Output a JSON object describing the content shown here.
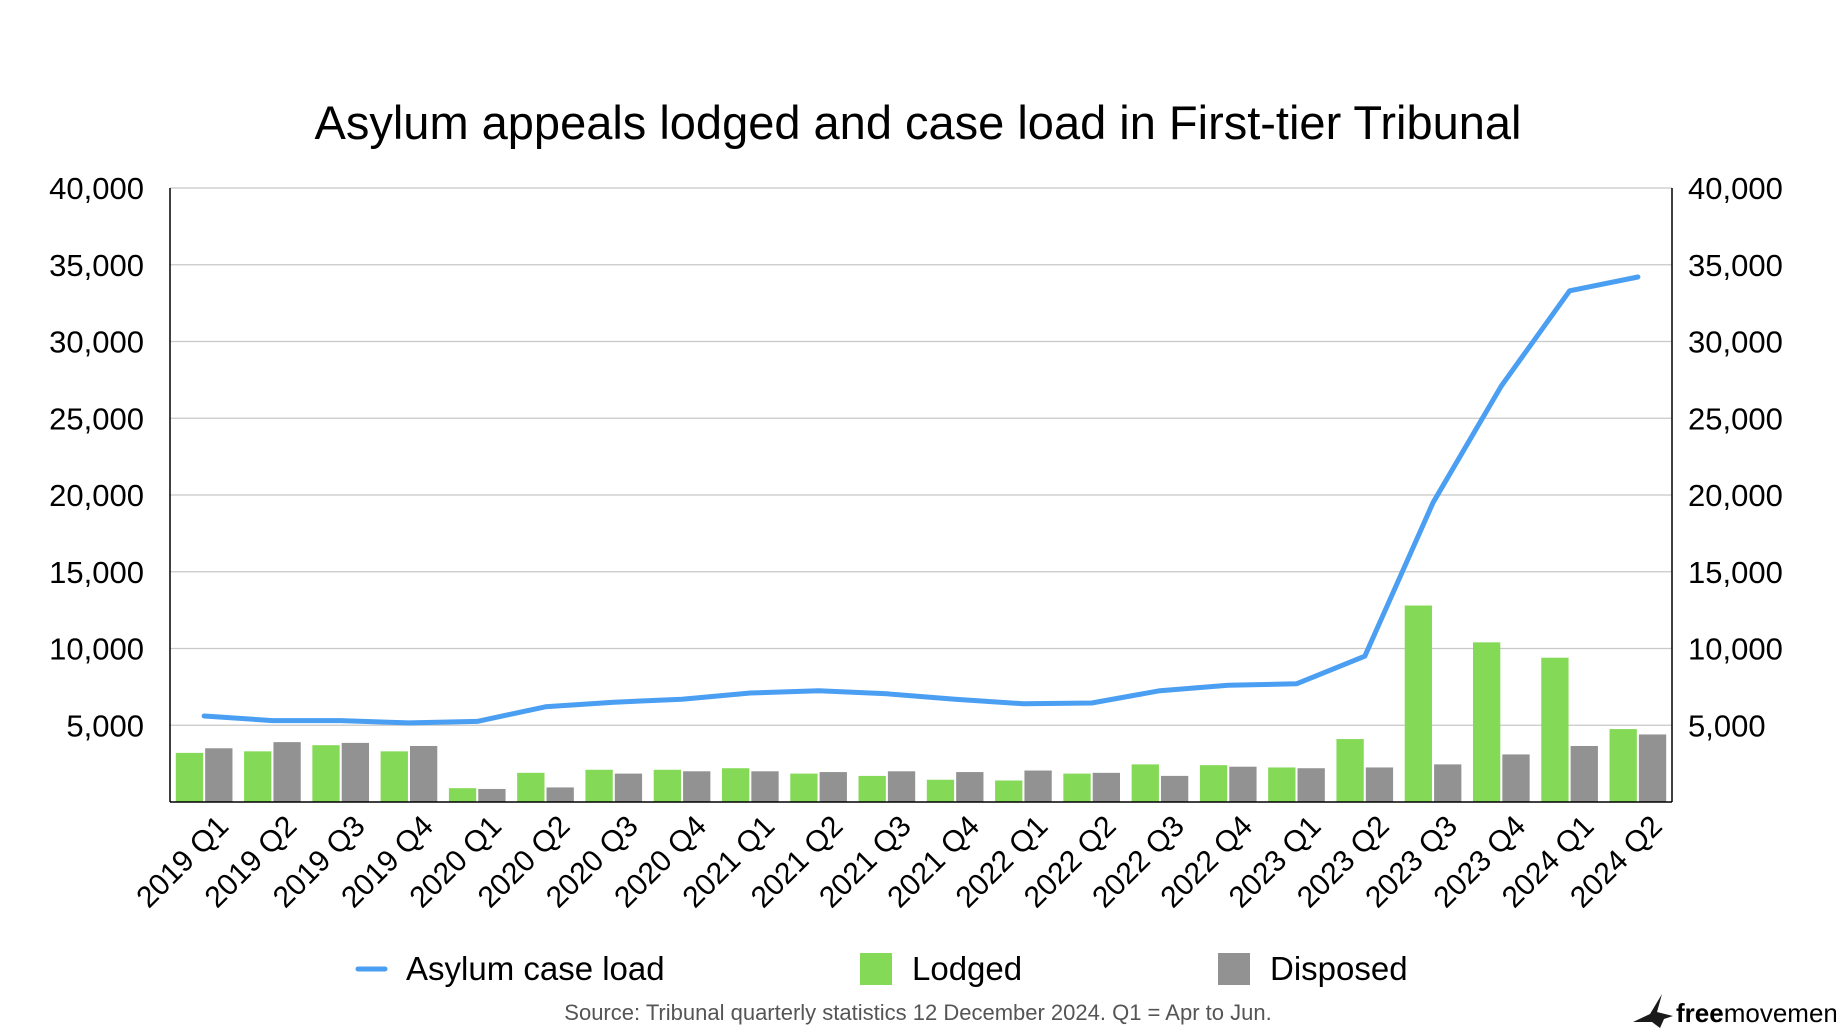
{
  "chart_data": {
    "type": "bar",
    "title": "Asylum appeals lodged and case load in First-tier Tribunal",
    "categories": [
      "2019 Q1",
      "2019 Q2",
      "2019 Q3",
      "2019 Q4",
      "2020 Q1",
      "2020 Q2",
      "2020 Q3",
      "2020 Q4",
      "2021 Q1",
      "2021 Q2",
      "2021 Q3",
      "2021 Q4",
      "2022 Q1",
      "2022 Q2",
      "2022 Q3",
      "2022 Q4",
      "2023 Q1",
      "2023 Q2",
      "2023 Q3",
      "2023 Q4",
      "2024 Q1",
      "2024 Q2"
    ],
    "series": [
      {
        "name": "Asylum case load",
        "kind": "line",
        "color": "#4a9ff2",
        "values": [
          5600,
          5300,
          5300,
          5150,
          5250,
          6200,
          6500,
          6700,
          7100,
          7250,
          7050,
          6700,
          6400,
          6450,
          7250,
          7600,
          7700,
          9500,
          19500,
          27100,
          33300,
          34200
        ]
      },
      {
        "name": "Lodged",
        "kind": "bar",
        "color": "#84d957",
        "values": [
          3200,
          3300,
          3700,
          3300,
          900,
          1900,
          2100,
          2100,
          2200,
          1850,
          1700,
          1450,
          1400,
          1850,
          2450,
          2400,
          2250,
          4100,
          12800,
          10400,
          9400,
          4750
        ]
      },
      {
        "name": "Disposed",
        "kind": "bar",
        "color": "#929292",
        "values": [
          3500,
          3900,
          3850,
          3650,
          850,
          950,
          1850,
          2000,
          2000,
          1950,
          2000,
          1950,
          2050,
          1900,
          1700,
          2300,
          2200,
          2250,
          2450,
          3100,
          3650,
          4400
        ]
      }
    ],
    "ylim": [
      0,
      40000
    ],
    "yticks": [
      "5,000",
      "10,000",
      "15,000",
      "20,000",
      "25,000",
      "30,000",
      "35,000",
      "40,000"
    ],
    "ytick_values": [
      5000,
      10000,
      15000,
      20000,
      25000,
      30000,
      35000,
      40000
    ],
    "y2ticks": [
      "5,000",
      "10,000",
      "15,000",
      "20,000",
      "25,000",
      "30,000",
      "35,000",
      "40,000"
    ],
    "grid": true,
    "legend_position": "bottom",
    "source": "Source: Tribunal quarterly statistics 12 December 2024. Q1 = Apr to Jun.",
    "brand": {
      "bold": "free",
      "rest": "movement",
      "icon": "bird-logo-icon"
    }
  }
}
